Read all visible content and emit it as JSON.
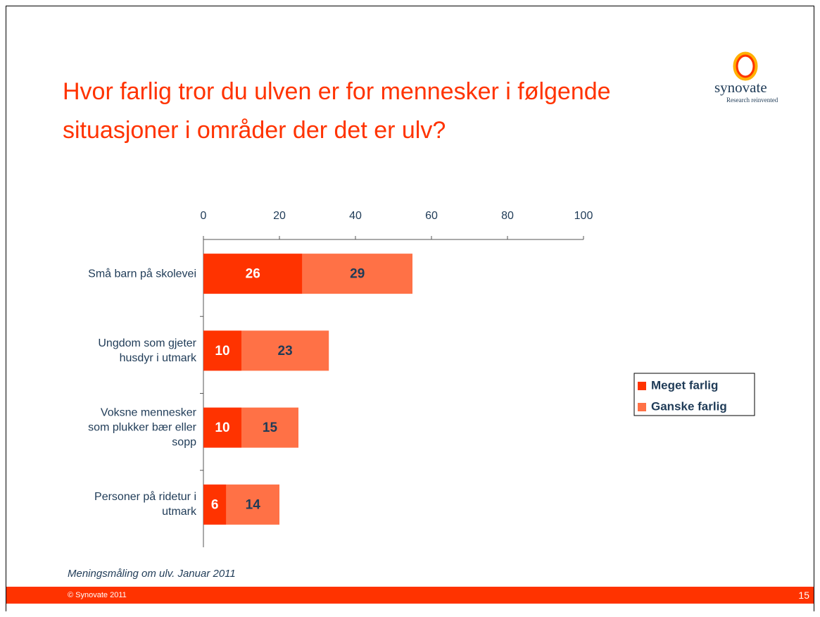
{
  "header": {
    "title_line1": "Hvor farlig tror du ulven er for mennesker i følgende",
    "title_line2": "situasjoner i områder der det er ulv?",
    "logo_name": "synovate",
    "logo_tagline": "Research reinvented"
  },
  "chart_data": {
    "type": "bar",
    "orientation": "horizontal",
    "stacked": true,
    "categories": [
      "Små barn på skolevei",
      "Ungdom som gjeter husdyr i utmark",
      "Voksne mennesker som plukker bær eller sopp",
      "Personer på ridetur i utmark"
    ],
    "series": [
      {
        "name": "Meget farlig",
        "color": "#ff3300",
        "label_color": "#ffffff",
        "values": [
          26,
          10,
          10,
          6
        ]
      },
      {
        "name": "Ganske farlig",
        "color": "#ff7146",
        "label_color": "#1f3b57",
        "values": [
          29,
          23,
          15,
          14
        ]
      }
    ],
    "xlim": [
      0,
      100
    ],
    "xticks": [
      0,
      20,
      40,
      60,
      80,
      100
    ],
    "legend": "right"
  },
  "footer": {
    "note": "Meningsmåling om ulv. Januar 2011",
    "copyright": "© Synovate 2011",
    "page": "15"
  }
}
